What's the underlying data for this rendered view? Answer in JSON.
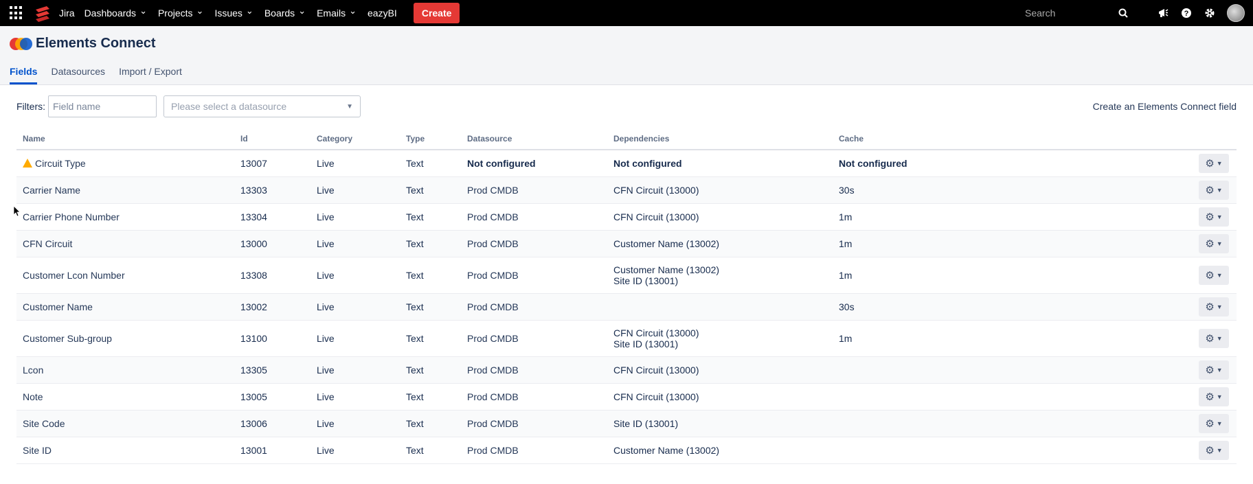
{
  "topnav": {
    "product": "Jira",
    "items": [
      {
        "label": "Dashboards",
        "dropdown": true
      },
      {
        "label": "Projects",
        "dropdown": true
      },
      {
        "label": "Issues",
        "dropdown": true
      },
      {
        "label": "Boards",
        "dropdown": true
      },
      {
        "label": "Emails",
        "dropdown": true
      },
      {
        "label": "eazyBI",
        "dropdown": false
      }
    ],
    "create_label": "Create",
    "search_placeholder": "Search",
    "icons": [
      "apps-icon",
      "search-icon",
      "megaphone-icon",
      "help-icon",
      "gear-icon",
      "avatar"
    ],
    "create_color": "#E53935"
  },
  "header": {
    "title": "Elements Connect",
    "tabs": [
      {
        "label": "Fields",
        "active": true
      },
      {
        "label": "Datasources",
        "active": false
      },
      {
        "label": "Import / Export",
        "active": false
      }
    ]
  },
  "filters": {
    "label": "Filters:",
    "field_name_placeholder": "Field name",
    "datasource_placeholder": "Please select a datasource",
    "create_link": "Create an Elements Connect field"
  },
  "table": {
    "columns": [
      "Name",
      "Id",
      "Category",
      "Type",
      "Datasource",
      "Dependencies",
      "Cache"
    ],
    "rows": [
      {
        "name": "Circuit Type",
        "warning": true,
        "id": "13007",
        "category": "Live",
        "type": "Text",
        "datasource": "Not configured",
        "dependencies": [
          "Not configured"
        ],
        "cache": "Not configured",
        "unconfigured": true
      },
      {
        "name": "Carrier Name",
        "id": "13303",
        "category": "Live",
        "type": "Text",
        "datasource": "Prod CMDB",
        "dependencies": [
          "CFN Circuit (13000)"
        ],
        "cache": "30s"
      },
      {
        "name": "Carrier Phone Number",
        "id": "13304",
        "category": "Live",
        "type": "Text",
        "datasource": "Prod CMDB",
        "dependencies": [
          "CFN Circuit (13000)"
        ],
        "cache": "1m"
      },
      {
        "name": "CFN Circuit",
        "id": "13000",
        "category": "Live",
        "type": "Text",
        "datasource": "Prod CMDB",
        "dependencies": [
          "Customer Name (13002)"
        ],
        "cache": "1m"
      },
      {
        "name": "Customer Lcon Number",
        "id": "13308",
        "category": "Live",
        "type": "Text",
        "datasource": "Prod CMDB",
        "dependencies": [
          "Customer Name (13002)",
          "Site ID (13001)"
        ],
        "cache": "1m"
      },
      {
        "name": "Customer Name",
        "id": "13002",
        "category": "Live",
        "type": "Text",
        "datasource": "Prod CMDB",
        "dependencies": [],
        "cache": "30s"
      },
      {
        "name": "Customer Sub-group",
        "id": "13100",
        "category": "Live",
        "type": "Text",
        "datasource": "Prod CMDB",
        "dependencies": [
          "CFN Circuit (13000)",
          "Site ID (13001)"
        ],
        "cache": "1m"
      },
      {
        "name": "Lcon",
        "id": "13305",
        "category": "Live",
        "type": "Text",
        "datasource": "Prod CMDB",
        "dependencies": [
          "CFN Circuit (13000)"
        ],
        "cache": ""
      },
      {
        "name": "Note",
        "id": "13005",
        "category": "Live",
        "type": "Text",
        "datasource": "Prod CMDB",
        "dependencies": [
          "CFN Circuit (13000)"
        ],
        "cache": ""
      },
      {
        "name": "Site Code",
        "id": "13006",
        "category": "Live",
        "type": "Text",
        "datasource": "Prod CMDB",
        "dependencies": [
          "Site ID (13001)"
        ],
        "cache": ""
      },
      {
        "name": "Site ID",
        "id": "13001",
        "category": "Live",
        "type": "Text",
        "datasource": "Prod CMDB",
        "dependencies": [
          "Customer Name (13002)"
        ],
        "cache": ""
      }
    ]
  }
}
